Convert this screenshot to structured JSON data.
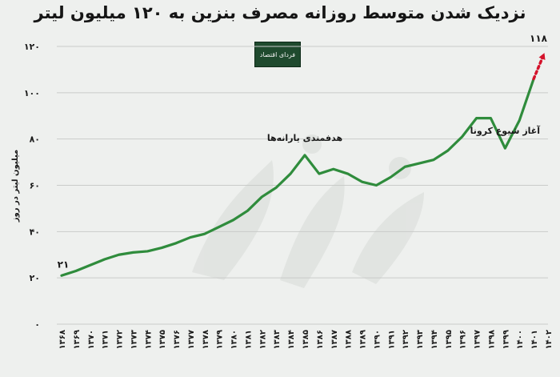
{
  "title": "نزدیک شدن متوسط روزانه مصرف بنزین به ۱۲۰ میلیون لیتر",
  "logo_text": "فردای اقتصاد",
  "colors": {
    "line": "#2f8c3c",
    "projection": "#d4132b",
    "grid": "#c9cbc9",
    "text": "#1a1a1a",
    "logo_bg": "#1f4a2e"
  },
  "chart_data": {
    "type": "line",
    "title": "نزدیک شدن متوسط روزانه مصرف بنزین به ۱۲۰ میلیون لیتر",
    "ylabel": "میلیون لیتر در روز",
    "xlabel": "",
    "ylim": [
      0,
      120
    ],
    "yticks": [
      "۰",
      "۲۰",
      "۴۰",
      "۶۰",
      "۸۰",
      "۱۰۰",
      "۱۲۰"
    ],
    "grid": true,
    "categories": [
      "۱۳۶۸",
      "۱۳۶۹",
      "۱۳۷۰",
      "۱۳۷۱",
      "۱۳۷۲",
      "۱۳۷۳",
      "۱۳۷۴",
      "۱۳۷۵",
      "۱۳۷۶",
      "۱۳۷۷",
      "۱۳۷۸",
      "۱۳۷۹",
      "۱۳۸۰",
      "۱۳۸۱",
      "۱۳۸۲",
      "۱۳۸۳",
      "۱۳۸۴",
      "۱۳۸۵",
      "۱۳۸۶",
      "۱۳۸۷",
      "۱۳۸۸",
      "۱۳۸۹",
      "۱۳۹۰",
      "۱۳۹۱",
      "۱۳۹۲",
      "۱۳۹۳",
      "۱۳۹۴",
      "۱۳۹۵",
      "۱۳۹۶",
      "۱۳۹۷",
      "۱۳۹۸",
      "۱۳۹۹",
      "۱۴۰۰",
      "۱۴۰۱",
      "۱۴۰۲"
    ],
    "values": [
      21,
      23,
      25.5,
      28,
      30,
      31,
      31.5,
      33,
      35,
      37.5,
      39,
      42,
      45,
      49,
      55,
      59,
      65,
      73,
      65,
      67,
      65,
      61.5,
      60,
      63.5,
      68,
      69.5,
      71,
      75,
      81,
      89,
      89,
      76,
      88,
      106,
      null
    ],
    "projection": {
      "from_index": 33,
      "to_index": 34,
      "value": 118,
      "label": "۱۱۸"
    },
    "annotations": [
      {
        "text": "هدفمندی یارانه‌ها",
        "index": 17
      },
      {
        "text": "آغاز شیوع کرونا",
        "index": 31
      }
    ],
    "data_labels": [
      {
        "index": 0,
        "text": "۲۱"
      }
    ]
  }
}
